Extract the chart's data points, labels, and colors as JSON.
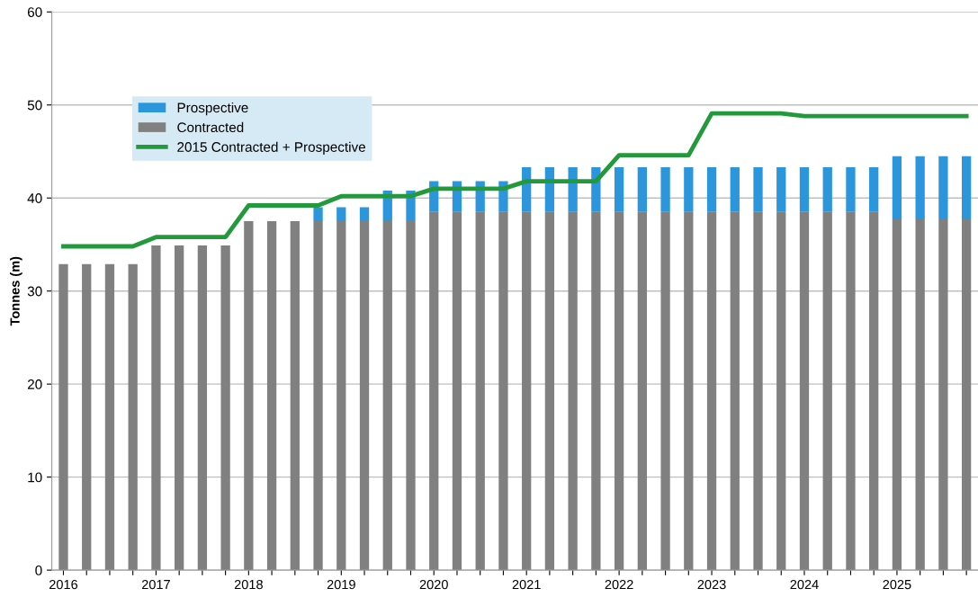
{
  "chart_data": {
    "type": "bar",
    "stacked": true,
    "ylabel": "Tonnes (m)",
    "categories": [
      "2016",
      null,
      null,
      null,
      "2017",
      null,
      null,
      null,
      "2018",
      null,
      null,
      null,
      "2019",
      null,
      null,
      null,
      "2020",
      null,
      null,
      null,
      "2021",
      null,
      null,
      null,
      "2022",
      null,
      null,
      null,
      "2023",
      null,
      null,
      null,
      "2024",
      null,
      null,
      null,
      "2025",
      null,
      null,
      null
    ],
    "series": [
      {
        "name": "Contracted",
        "color": "#808080",
        "values": [
          32.9,
          32.9,
          32.9,
          32.9,
          34.9,
          34.9,
          34.9,
          34.9,
          37.5,
          37.5,
          37.5,
          37.5,
          37.5,
          37.5,
          37.5,
          37.5,
          38.5,
          38.5,
          38.5,
          38.5,
          38.5,
          38.5,
          38.5,
          38.5,
          38.5,
          38.5,
          38.5,
          38.5,
          38.5,
          38.5,
          38.5,
          38.5,
          38.5,
          38.5,
          38.5,
          38.5,
          37.7,
          37.7,
          37.7,
          37.7
        ]
      },
      {
        "name": "Prospective",
        "color": "#2b96dc",
        "values": [
          0,
          0,
          0,
          0,
          0,
          0,
          0,
          0,
          0,
          0,
          0,
          1.5,
          1.5,
          1.5,
          3.3,
          3.3,
          3.3,
          3.3,
          3.3,
          3.3,
          4.8,
          4.8,
          4.8,
          4.8,
          4.8,
          4.8,
          4.8,
          4.8,
          4.8,
          4.8,
          4.8,
          4.8,
          4.8,
          4.8,
          4.8,
          4.8,
          6.8,
          6.8,
          6.8,
          6.8
        ]
      },
      {
        "name": "2015 Contracted + Prospective",
        "type": "line",
        "color": "#22993a",
        "values": [
          34.8,
          34.8,
          34.8,
          34.8,
          35.8,
          35.8,
          35.8,
          35.8,
          39.2,
          39.2,
          39.2,
          39.2,
          40.2,
          40.2,
          40.2,
          40.2,
          41.0,
          41.0,
          41.0,
          41.0,
          41.8,
          41.8,
          41.8,
          41.8,
          44.6,
          44.6,
          44.6,
          44.6,
          49.1,
          49.1,
          49.1,
          49.1,
          48.8,
          48.8,
          48.8,
          48.8,
          48.8,
          48.8,
          48.8,
          48.8
        ]
      }
    ],
    "ylim": [
      0,
      60
    ],
    "yticks": [
      0,
      10,
      20,
      30,
      40,
      50,
      60
    ],
    "grid": "y",
    "legend": "top left"
  }
}
